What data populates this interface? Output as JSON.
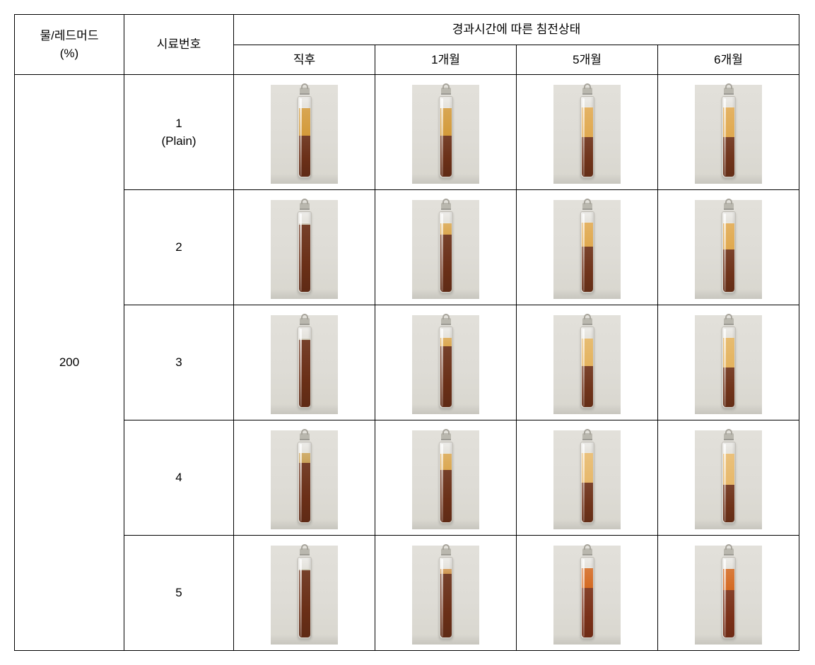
{
  "headers": {
    "ratio": "물/레드머드\n(%)",
    "sample": "시료번호",
    "time_group": "경과시간에 따른 침전상태",
    "times": [
      "직후",
      "1개월",
      "5개월",
      "6개월"
    ]
  },
  "ratio_value": "200",
  "samples": [
    {
      "id": "1",
      "label": "1\n(Plain)"
    },
    {
      "id": "2",
      "label": "2"
    },
    {
      "id": "3",
      "label": "3"
    },
    {
      "id": "4",
      "label": "4"
    },
    {
      "id": "5",
      "label": "5"
    }
  ],
  "colors": {
    "sediment_dark": "#6a2f17",
    "sediment_mid": "#7a3920",
    "supernat_amber": "#d39a3a",
    "supernat_amber_light": "#e7b86a",
    "supernat_orange": "#d46a22",
    "supernat_clear": "#c9c4b2",
    "glass_air": "#ded9cc"
  },
  "fill_total_pct": 84,
  "cells": {
    "1": [
      {
        "sediment_pct": 50,
        "super_pct": 34,
        "sediment_color": "#6a2f17",
        "super_color": "#d39a3a"
      },
      {
        "sediment_pct": 50,
        "super_pct": 34,
        "sediment_color": "#6a2f17",
        "super_color": "#d39a3a"
      },
      {
        "sediment_pct": 48,
        "super_pct": 36,
        "sediment_color": "#6f331a",
        "super_color": "#e0a94f"
      },
      {
        "sediment_pct": 48,
        "super_pct": 36,
        "sediment_color": "#6f331a",
        "super_color": "#e0a94f"
      }
    ],
    "2": [
      {
        "sediment_pct": 82,
        "super_pct": 2,
        "sediment_color": "#6a2f17",
        "super_color": "#c9c4b2"
      },
      {
        "sediment_pct": 70,
        "super_pct": 14,
        "sediment_color": "#6a2f17",
        "super_color": "#dba851"
      },
      {
        "sediment_pct": 55,
        "super_pct": 29,
        "sediment_color": "#6f331a",
        "super_color": "#e0a94f"
      },
      {
        "sediment_pct": 52,
        "super_pct": 32,
        "sediment_color": "#6f331a",
        "super_color": "#e0a94f"
      }
    ],
    "3": [
      {
        "sediment_pct": 82,
        "super_pct": 2,
        "sediment_color": "#6a2f17",
        "super_color": "#c9c4b2"
      },
      {
        "sediment_pct": 74,
        "super_pct": 10,
        "sediment_color": "#6a2f17",
        "super_color": "#dba851"
      },
      {
        "sediment_pct": 50,
        "super_pct": 34,
        "sediment_color": "#6f331a",
        "super_color": "#e4b35e"
      },
      {
        "sediment_pct": 48,
        "super_pct": 36,
        "sediment_color": "#6f331a",
        "super_color": "#e4b35e"
      }
    ],
    "4": [
      {
        "sediment_pct": 72,
        "super_pct": 12,
        "sediment_color": "#6a2f17",
        "super_color": "#caa35a"
      },
      {
        "sediment_pct": 64,
        "super_pct": 20,
        "sediment_color": "#6a2f17",
        "super_color": "#dba851"
      },
      {
        "sediment_pct": 48,
        "super_pct": 36,
        "sediment_color": "#6f331a",
        "super_color": "#e7b86a"
      },
      {
        "sediment_pct": 46,
        "super_pct": 38,
        "sediment_color": "#6f331a",
        "super_color": "#e7b86a"
      }
    ],
    "5": [
      {
        "sediment_pct": 82,
        "super_pct": 2,
        "sediment_color": "#6a2f17",
        "super_color": "#c9c4b2"
      },
      {
        "sediment_pct": 78,
        "super_pct": 6,
        "sediment_color": "#6a2f17",
        "super_color": "#d09852"
      },
      {
        "sediment_pct": 60,
        "super_pct": 24,
        "sediment_color": "#7a3018",
        "super_color": "#d46a22"
      },
      {
        "sediment_pct": 58,
        "super_pct": 26,
        "sediment_color": "#7a3018",
        "super_color": "#d46a22"
      }
    ]
  }
}
